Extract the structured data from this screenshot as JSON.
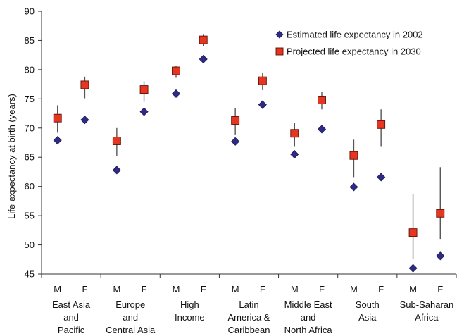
{
  "chart_data": {
    "type": "scatter",
    "ylabel": "Life expectancy at birth (years)",
    "ylim": [
      45,
      90
    ],
    "yticks": [
      45,
      50,
      55,
      60,
      65,
      70,
      75,
      80,
      85,
      90
    ],
    "groups": [
      {
        "label_lines": [
          "East Asia",
          "and",
          "Pacific"
        ],
        "sexes": [
          "M",
          "F"
        ]
      },
      {
        "label_lines": [
          "Europe",
          "and",
          "Central Asia"
        ],
        "sexes": [
          "M",
          "F"
        ]
      },
      {
        "label_lines": [
          "High",
          "Income"
        ],
        "sexes": [
          "M",
          "F"
        ]
      },
      {
        "label_lines": [
          "Latin",
          "America &",
          "Caribbean"
        ],
        "sexes": [
          "M",
          "F"
        ]
      },
      {
        "label_lines": [
          "Middle East",
          "and",
          "North Africa"
        ],
        "sexes": [
          "M",
          "F"
        ]
      },
      {
        "label_lines": [
          "South",
          "Asia"
        ],
        "sexes": [
          "M",
          "F"
        ]
      },
      {
        "label_lines": [
          "Sub-Saharan",
          "Africa"
        ],
        "sexes": [
          "M",
          "F"
        ]
      }
    ],
    "series": [
      {
        "name": "Estimated life expectancy in 2002",
        "marker": "diamond",
        "color": "#2e2a86",
        "values": [
          67.9,
          71.4,
          62.8,
          72.8,
          75.9,
          81.8,
          67.7,
          74.0,
          65.5,
          69.8,
          59.9,
          61.6,
          46.0,
          48.1
        ]
      },
      {
        "name": "Projected life expectancy in 2030",
        "marker": "square",
        "color": "#e8351f",
        "values": [
          71.7,
          77.4,
          67.8,
          76.6,
          79.8,
          85.1,
          71.3,
          78.1,
          69.1,
          74.8,
          65.3,
          70.6,
          52.1,
          55.4
        ],
        "error_low": [
          69.2,
          75.1,
          65.2,
          74.5,
          78.6,
          84.0,
          68.9,
          76.5,
          66.9,
          73.2,
          61.6,
          66.9,
          47.6,
          50.9
        ],
        "error_high": [
          73.9,
          78.8,
          70.0,
          78.0,
          80.6,
          86.1,
          73.4,
          79.5,
          70.9,
          76.2,
          68.0,
          73.2,
          58.7,
          63.3
        ]
      }
    ],
    "legend_position": "top-right",
    "grid": false
  }
}
